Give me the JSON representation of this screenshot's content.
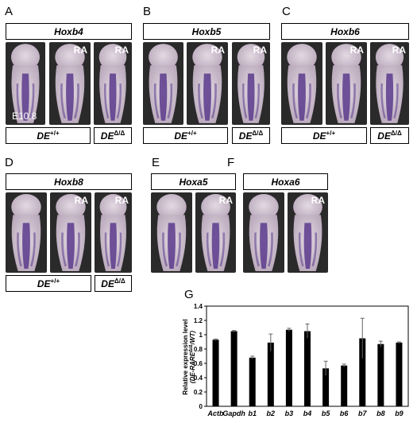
{
  "panels": {
    "A": {
      "label": "A",
      "gene": "Hoxb4",
      "ra": "RA",
      "stage": "E10.8"
    },
    "B": {
      "label": "B",
      "gene": "Hoxb5",
      "ra": "RA"
    },
    "C": {
      "label": "C",
      "gene": "Hoxb6",
      "ra": "RA"
    },
    "D": {
      "label": "D",
      "gene": "Hoxb8",
      "ra": "RA"
    },
    "E": {
      "label": "E",
      "gene": "Hoxa5",
      "ra": "RA"
    },
    "F": {
      "label": "F",
      "gene": "Hoxa6",
      "ra": "RA"
    },
    "G": {
      "label": "G"
    }
  },
  "genotypes": {
    "wt_base": "DE",
    "wt_sup": "+/+",
    "mut_base": "DE",
    "mut_sup": "Δ/Δ"
  },
  "colors": {
    "stain": "#5a3a8c",
    "tissue": "#cfc3cf",
    "background": "#2a2a2a"
  },
  "chart_data": {
    "type": "bar",
    "categories": [
      "Actb",
      "Gapdh",
      "b1",
      "b2",
      "b3",
      "b4",
      "b5",
      "b6",
      "b7",
      "b8",
      "b9"
    ],
    "values": [
      0.93,
      1.05,
      0.68,
      0.89,
      1.07,
      1.05,
      0.53,
      0.57,
      0.95,
      0.87,
      0.89
    ],
    "errors": [
      0.01,
      0.01,
      0.02,
      0.12,
      0.02,
      0.1,
      0.1,
      0.02,
      0.28,
      0.04,
      0.01
    ],
    "ylabel_line1": "Relative expression level",
    "ylabel_line2": "(DE-RARE",
    "ylabel_sup": "Δ/Δ",
    "ylabel_end": "/WT)",
    "yticks": [
      "0",
      "0.2",
      "0.4",
      "0.6",
      "0.8",
      "1",
      "1.2",
      "1.4"
    ],
    "ylim": [
      0,
      1.4
    ],
    "color": "#000000"
  }
}
